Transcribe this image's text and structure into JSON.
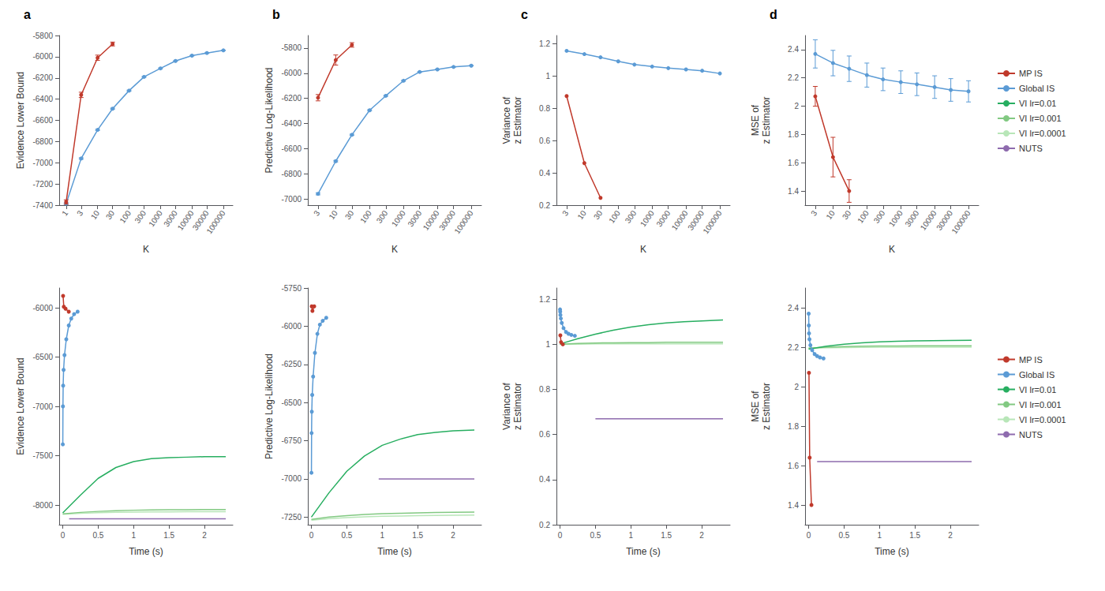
{
  "chart_data": [
    {
      "type": "line",
      "title": "a",
      "xlabel": "K",
      "ylabel": "Evidence Lower Bound",
      "log": "x",
      "grid": false,
      "xlim": [
        0.6,
        200000
      ],
      "xticks": [
        1,
        3,
        10,
        30,
        100,
        300,
        1000,
        3000,
        10000,
        30000,
        100000
      ],
      "ylim": [
        -7400,
        -5800
      ],
      "yticks": [
        -7400,
        -7200,
        -7000,
        -6800,
        -6600,
        -6400,
        -6200,
        -6000,
        -5800
      ],
      "series": [
        {
          "name": "MP IS",
          "color": "#c0392b",
          "marker": "circle",
          "x": [
            1,
            3,
            10,
            30
          ],
          "values": [
            -7370,
            -6360,
            -6010,
            -5880
          ],
          "errors": [
            20,
            25,
            25,
            18
          ]
        },
        {
          "name": "Global IS",
          "color": "#5b9bd5",
          "marker": "circle",
          "x": [
            1,
            3,
            10,
            30,
            100,
            300,
            1000,
            3000,
            10000,
            30000,
            100000
          ],
          "values": [
            -7385,
            -6960,
            -6690,
            -6490,
            -6320,
            -6190,
            -6110,
            -6040,
            -5990,
            -5965,
            -5940
          ],
          "errors": [
            8,
            7,
            6,
            5,
            5,
            4,
            4,
            3,
            3,
            3,
            2
          ]
        }
      ]
    },
    {
      "type": "line",
      "title": "b",
      "xlabel": "K",
      "ylabel": "Predictive Log-Likelihood",
      "log": "x",
      "grid": false,
      "xlim": [
        1.5,
        200000
      ],
      "xticks": [
        3,
        10,
        30,
        100,
        300,
        1000,
        3000,
        10000,
        30000,
        100000
      ],
      "ylim": [
        -7050,
        -5700
      ],
      "yticks": [
        -7000,
        -6800,
        -6600,
        -6400,
        -6200,
        -6000,
        -5800
      ],
      "series": [
        {
          "name": "MP IS",
          "color": "#c0392b",
          "marker": "circle",
          "x": [
            3,
            10,
            30
          ],
          "values": [
            -6195,
            -5895,
            -5775
          ],
          "errors": [
            25,
            40,
            18
          ]
        },
        {
          "name": "Global IS",
          "color": "#5b9bd5",
          "marker": "circle",
          "x": [
            3,
            10,
            30,
            100,
            300,
            1000,
            3000,
            10000,
            30000,
            100000
          ],
          "values": [
            -6960,
            -6700,
            -6490,
            -6295,
            -6180,
            -6060,
            -5990,
            -5970,
            -5950,
            -5940
          ],
          "errors": [
            8,
            6,
            5,
            5,
            4,
            4,
            3,
            3,
            3,
            2
          ]
        }
      ]
    },
    {
      "type": "line",
      "title": "c",
      "xlabel": "K",
      "ylabel": "Variance of\nz Estimator",
      "log": "x",
      "grid": false,
      "xlim": [
        1.5,
        200000
      ],
      "xticks": [
        3,
        10,
        30,
        100,
        300,
        1000,
        3000,
        10000,
        30000,
        100000
      ],
      "ylim": [
        0.2,
        1.25
      ],
      "yticks": [
        0.2,
        0.4,
        0.6,
        0.8,
        1,
        1.2
      ],
      "series": [
        {
          "name": "MP IS",
          "color": "#c0392b",
          "marker": "circle",
          "x": [
            3,
            10,
            30
          ],
          "values": [
            0.875,
            0.46,
            0.245
          ]
        },
        {
          "name": "Global IS",
          "color": "#5b9bd5",
          "marker": "circle",
          "x": [
            3,
            10,
            30,
            100,
            300,
            1000,
            3000,
            10000,
            30000,
            100000
          ],
          "values": [
            1.155,
            1.135,
            1.115,
            1.09,
            1.07,
            1.058,
            1.048,
            1.04,
            1.032,
            1.015
          ]
        }
      ]
    },
    {
      "type": "line",
      "title": "d",
      "xlabel": "K",
      "ylabel": "MSE of\nz Estimator",
      "log": "x",
      "grid": false,
      "legend": "right",
      "xlim": [
        1.5,
        200000
      ],
      "xticks": [
        3,
        10,
        30,
        100,
        300,
        1000,
        3000,
        10000,
        30000,
        100000
      ],
      "ylim": [
        1.3,
        2.5
      ],
      "yticks": [
        1.4,
        1.6,
        1.8,
        2,
        2.2,
        2.4
      ],
      "series": [
        {
          "name": "MP IS",
          "color": "#c0392b",
          "marker": "circle",
          "x": [
            3,
            10,
            30
          ],
          "values": [
            2.07,
            1.64,
            1.4
          ],
          "errors": [
            0.07,
            0.14,
            0.08
          ]
        },
        {
          "name": "Global IS",
          "color": "#5b9bd5",
          "marker": "circle",
          "x": [
            3,
            10,
            30,
            100,
            300,
            1000,
            3000,
            10000,
            30000,
            100000
          ],
          "values": [
            2.37,
            2.305,
            2.265,
            2.22,
            2.19,
            2.17,
            2.155,
            2.135,
            2.115,
            2.105
          ],
          "errors": [
            0.1,
            0.09,
            0.09,
            0.085,
            0.08,
            0.08,
            0.08,
            0.08,
            0.08,
            0.075
          ]
        },
        {
          "name": "VI lr=0.01",
          "color": "#27ae60",
          "marker": "none",
          "x": [],
          "values": []
        },
        {
          "name": "VI lr=0.001",
          "color": "#82c982",
          "marker": "none",
          "x": [],
          "values": []
        },
        {
          "name": "VI lr=0.0001",
          "color": "#b8e6b8",
          "marker": "none",
          "x": [],
          "values": []
        },
        {
          "name": "NUTS",
          "color": "#8e6bae",
          "marker": "none",
          "x": [],
          "values": []
        }
      ]
    },
    {
      "type": "line",
      "xlabel": "Time (s)",
      "ylabel": "Evidence Lower Bound",
      "grid": false,
      "xlim": [
        -0.05,
        2.4
      ],
      "xticks": [
        0,
        0.5,
        1,
        1.5,
        2
      ],
      "ylim": [
        -8200,
        -5800
      ],
      "yticks": [
        -8000,
        -7500,
        -7000,
        -6500,
        -6000
      ],
      "series": [
        {
          "name": "MP IS",
          "color": "#c0392b",
          "marker": "circle",
          "x": [
            0.005,
            0.015,
            0.04,
            0.085
          ],
          "values": [
            -5880,
            -5990,
            -6010,
            -6040
          ]
        },
        {
          "name": "Global IS",
          "color": "#5b9bd5",
          "marker": "circle",
          "x": [
            0.001,
            0.003,
            0.006,
            0.012,
            0.025,
            0.05,
            0.085,
            0.12,
            0.16,
            0.21
          ],
          "values": [
            -7385,
            -7000,
            -6790,
            -6630,
            -6480,
            -6320,
            -6180,
            -6110,
            -6065,
            -6040
          ]
        },
        {
          "name": "VI lr=0.01",
          "color": "#27ae60",
          "marker": "none",
          "x": [
            0.0,
            0.25,
            0.5,
            0.75,
            1.0,
            1.25,
            1.5,
            1.75,
            2.0,
            2.3
          ],
          "values": [
            -8080,
            -7900,
            -7730,
            -7620,
            -7560,
            -7530,
            -7520,
            -7515,
            -7510,
            -7510
          ]
        },
        {
          "name": "VI lr=0.001",
          "color": "#82c982",
          "marker": "none",
          "x": [
            0.0,
            0.25,
            0.5,
            0.75,
            1.0,
            1.25,
            1.5,
            1.75,
            2.0,
            2.3
          ],
          "values": [
            -8090,
            -8075,
            -8065,
            -8058,
            -8053,
            -8050,
            -8048,
            -8047,
            -8046,
            -8045
          ]
        },
        {
          "name": "VI lr=0.0001",
          "color": "#b8e6b8",
          "marker": "none",
          "x": [
            0.0,
            0.25,
            0.5,
            0.75,
            1.0,
            1.25,
            1.5,
            1.75,
            2.0,
            2.3
          ],
          "values": [
            -8095,
            -8085,
            -8078,
            -8074,
            -8072,
            -8070,
            -8069,
            -8068,
            -8067,
            -8067
          ]
        },
        {
          "name": "NUTS",
          "color": "#8e6bae",
          "marker": "none",
          "x": [
            0.09,
            2.3
          ],
          "values": [
            -8140,
            -8140
          ]
        }
      ]
    },
    {
      "type": "line",
      "xlabel": "Time (s)",
      "ylabel": "Predictive Log-Likelihood",
      "grid": false,
      "xlim": [
        -0.05,
        2.4
      ],
      "xticks": [
        0,
        0.5,
        1,
        1.5,
        2
      ],
      "ylim": [
        -7300,
        -5750
      ],
      "yticks": [
        -7250,
        -7000,
        -6750,
        -6500,
        -6250,
        -6000,
        -5750
      ],
      "series": [
        {
          "name": "MP IS",
          "color": "#c0392b",
          "marker": "circle",
          "x": [
            0.005,
            0.015,
            0.04
          ],
          "values": [
            -5870,
            -5900,
            -5870
          ]
        },
        {
          "name": "Global IS",
          "color": "#5b9bd5",
          "marker": "circle",
          "x": [
            0.001,
            0.003,
            0.006,
            0.012,
            0.025,
            0.05,
            0.085,
            0.12,
            0.16,
            0.21
          ],
          "values": [
            -6960,
            -6700,
            -6560,
            -6450,
            -6330,
            -6175,
            -6050,
            -5990,
            -5965,
            -5945
          ]
        },
        {
          "name": "VI lr=0.01",
          "color": "#27ae60",
          "marker": "none",
          "x": [
            0.0,
            0.25,
            0.5,
            0.75,
            1.0,
            1.25,
            1.5,
            1.75,
            2.0,
            2.3
          ],
          "values": [
            -7250,
            -7090,
            -6950,
            -6850,
            -6780,
            -6740,
            -6710,
            -6695,
            -6685,
            -6680
          ]
        },
        {
          "name": "VI lr=0.001",
          "color": "#82c982",
          "marker": "none",
          "x": [
            0.0,
            0.25,
            0.5,
            0.75,
            1.0,
            1.25,
            1.5,
            1.75,
            2.0,
            2.3
          ],
          "values": [
            -7265,
            -7250,
            -7240,
            -7233,
            -7228,
            -7225,
            -7222,
            -7220,
            -7218,
            -7217
          ]
        },
        {
          "name": "VI lr=0.0001",
          "color": "#b8e6b8",
          "marker": "none",
          "x": [
            0.0,
            0.25,
            0.5,
            0.75,
            1.0,
            1.25,
            1.5,
            1.75,
            2.0,
            2.3
          ],
          "values": [
            -7270,
            -7260,
            -7253,
            -7248,
            -7245,
            -7243,
            -7241,
            -7239,
            -7238,
            -7237
          ]
        },
        {
          "name": "NUTS",
          "color": "#8e6bae",
          "marker": "none",
          "x": [
            0.95,
            2.3
          ],
          "values": [
            -7000,
            -7000
          ]
        }
      ]
    },
    {
      "type": "line",
      "xlabel": "Time (s)",
      "ylabel": "Variance of\nz Estimator",
      "grid": false,
      "xlim": [
        -0.05,
        2.4
      ],
      "xticks": [
        0,
        0.5,
        1,
        1.5,
        2
      ],
      "ylim": [
        0.2,
        1.25
      ],
      "yticks": [
        0.2,
        0.4,
        0.6,
        0.8,
        1,
        1.2
      ],
      "series": [
        {
          "name": "MP IS",
          "color": "#c0392b",
          "marker": "circle",
          "x": [
            0.005,
            0.015,
            0.04
          ],
          "values": [
            1.04,
            1.01,
            1.0
          ]
        },
        {
          "name": "Global IS",
          "color": "#5b9bd5",
          "marker": "circle",
          "x": [
            0.001,
            0.003,
            0.006,
            0.012,
            0.025,
            0.05,
            0.085,
            0.12,
            0.16,
            0.21
          ],
          "values": [
            1.155,
            1.145,
            1.13,
            1.115,
            1.095,
            1.072,
            1.055,
            1.047,
            1.042,
            1.038
          ]
        },
        {
          "name": "VI lr=0.01",
          "color": "#27ae60",
          "marker": "none",
          "x": [
            0.0,
            0.25,
            0.5,
            0.75,
            1.0,
            1.25,
            1.5,
            1.75,
            2.0,
            2.3
          ],
          "values": [
            1.002,
            1.025,
            1.045,
            1.063,
            1.077,
            1.087,
            1.095,
            1.1,
            1.104,
            1.108
          ]
        },
        {
          "name": "VI lr=0.001",
          "color": "#82c982",
          "marker": "none",
          "x": [
            0.0,
            0.25,
            0.5,
            0.75,
            1.0,
            1.25,
            1.5,
            1.75,
            2.0,
            2.3
          ],
          "values": [
            1.001,
            1.004,
            1.006,
            1.007,
            1.008,
            1.008,
            1.009,
            1.009,
            1.009,
            1.009
          ]
        },
        {
          "name": "VI lr=0.0001",
          "color": "#b8e6b8",
          "marker": "none",
          "x": [
            0.0,
            0.25,
            0.5,
            0.75,
            1.0,
            1.25,
            1.5,
            1.75,
            2.0,
            2.3
          ],
          "values": [
            1.0,
            1.001,
            1.002,
            1.002,
            1.002,
            1.002,
            1.002,
            1.002,
            1.002,
            1.002
          ]
        },
        {
          "name": "NUTS",
          "color": "#8e6bae",
          "marker": "none",
          "x": [
            0.5,
            2.3
          ],
          "values": [
            0.67,
            0.67
          ]
        }
      ]
    },
    {
      "type": "line",
      "xlabel": "Time (s)",
      "ylabel": "MSE of\nz Estimator",
      "grid": false,
      "legend": "right",
      "xlim": [
        -0.05,
        2.4
      ],
      "xticks": [
        0,
        0.5,
        1,
        1.5,
        2
      ],
      "ylim": [
        1.3,
        2.5
      ],
      "yticks": [
        1.4,
        1.6,
        1.8,
        2,
        2.2,
        2.4
      ],
      "series": [
        {
          "name": "MP IS",
          "color": "#c0392b",
          "marker": "circle",
          "x": [
            0.005,
            0.015,
            0.04
          ],
          "values": [
            2.07,
            1.64,
            1.4
          ]
        },
        {
          "name": "Global IS",
          "color": "#5b9bd5",
          "marker": "circle",
          "x": [
            0.001,
            0.003,
            0.006,
            0.012,
            0.025,
            0.05,
            0.085,
            0.12,
            0.16,
            0.21
          ],
          "values": [
            2.37,
            2.31,
            2.27,
            2.24,
            2.21,
            2.185,
            2.165,
            2.155,
            2.148,
            2.143
          ]
        },
        {
          "name": "VI lr=0.01",
          "color": "#27ae60",
          "marker": "none",
          "x": [
            0.0,
            0.25,
            0.5,
            0.75,
            1.0,
            1.25,
            1.5,
            1.75,
            2.0,
            2.3
          ],
          "values": [
            2.19,
            2.205,
            2.215,
            2.222,
            2.227,
            2.23,
            2.232,
            2.233,
            2.234,
            2.235
          ]
        },
        {
          "name": "VI lr=0.001",
          "color": "#82c982",
          "marker": "none",
          "x": [
            0.0,
            0.25,
            0.5,
            0.75,
            1.0,
            1.25,
            1.5,
            1.75,
            2.0,
            2.3
          ],
          "values": [
            2.195,
            2.2,
            2.203,
            2.205,
            2.206,
            2.206,
            2.207,
            2.207,
            2.207,
            2.207
          ]
        },
        {
          "name": "VI lr=0.0001",
          "color": "#b8e6b8",
          "marker": "none",
          "x": [
            0.0,
            0.25,
            0.5,
            0.75,
            1.0,
            1.25,
            1.5,
            1.75,
            2.0,
            2.3
          ],
          "values": [
            2.195,
            2.197,
            2.198,
            2.199,
            2.2,
            2.2,
            2.2,
            2.2,
            2.2,
            2.2
          ]
        },
        {
          "name": "NUTS",
          "color": "#8e6bae",
          "marker": "none",
          "x": [
            0.12,
            2.3
          ],
          "values": [
            1.62,
            1.62
          ]
        }
      ]
    }
  ]
}
